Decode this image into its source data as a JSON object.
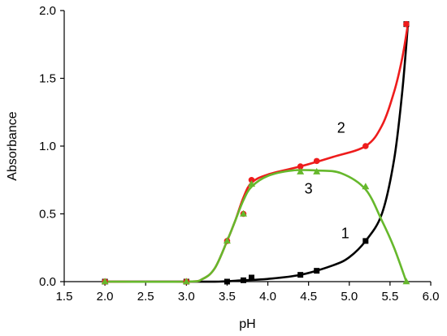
{
  "chart_data": {
    "type": "line",
    "xlabel": "pH",
    "ylabel": "Absorbance",
    "xlim": [
      1.5,
      6.0
    ],
    "ylim": [
      0.0,
      2.0
    ],
    "xticks": [
      "1.5",
      "2.0",
      "2.5",
      "3.0",
      "3.5",
      "4.0",
      "4.5",
      "5.0",
      "5.5",
      "6.0"
    ],
    "yticks": [
      "0.0",
      "0.5",
      "1.0",
      "1.5",
      "2.0"
    ],
    "grid": false,
    "series": [
      {
        "name": "1",
        "color": "#000000",
        "marker": "square",
        "x": [
          2.0,
          3.0,
          3.5,
          3.7,
          3.8,
          4.4,
          4.6,
          5.2,
          5.7
        ],
        "y": [
          0.0,
          0.0,
          0.0,
          0.01,
          0.03,
          0.05,
          0.08,
          0.3,
          1.9
        ],
        "curve_x": [
          2.0,
          3.0,
          3.4,
          3.7,
          4.0,
          4.4,
          4.8,
          5.0,
          5.2,
          5.4,
          5.55,
          5.65,
          5.72
        ],
        "curve_y": [
          0.0,
          0.0,
          0.0,
          0.01,
          0.02,
          0.05,
          0.12,
          0.18,
          0.3,
          0.5,
          0.9,
          1.4,
          1.9
        ]
      },
      {
        "name": "2",
        "color": "#ee1c1c",
        "marker": "circle",
        "x": [
          2.0,
          3.0,
          3.5,
          3.7,
          3.8,
          4.4,
          4.6,
          5.2,
          5.7
        ],
        "y": [
          0.0,
          0.0,
          0.3,
          0.5,
          0.75,
          0.85,
          0.89,
          1.0,
          1.9
        ],
        "curve_x": [
          2.0,
          3.0,
          3.2,
          3.35,
          3.5,
          3.6,
          3.7,
          3.8,
          4.0,
          4.4,
          4.8,
          5.2,
          5.4,
          5.55,
          5.65,
          5.72
        ],
        "curve_y": [
          0.0,
          0.0,
          0.02,
          0.1,
          0.3,
          0.45,
          0.62,
          0.73,
          0.79,
          0.85,
          0.92,
          1.0,
          1.15,
          1.4,
          1.65,
          1.9
        ]
      },
      {
        "name": "3",
        "color": "#66b82c",
        "marker": "triangle",
        "x": [
          2.0,
          3.0,
          3.5,
          3.7,
          3.8,
          4.4,
          4.6,
          5.2,
          5.7
        ],
        "y": [
          0.0,
          0.0,
          0.3,
          0.5,
          0.72,
          0.81,
          0.81,
          0.7,
          0.0
        ],
        "curve_x": [
          2.0,
          3.0,
          3.2,
          3.35,
          3.5,
          3.6,
          3.7,
          3.8,
          4.0,
          4.3,
          4.6,
          4.9,
          5.2,
          5.4,
          5.55,
          5.7
        ],
        "curve_y": [
          0.0,
          0.0,
          0.02,
          0.1,
          0.3,
          0.45,
          0.6,
          0.7,
          0.78,
          0.82,
          0.82,
          0.8,
          0.68,
          0.45,
          0.25,
          0.0
        ]
      }
    ],
    "annotations": [
      {
        "text": "1",
        "x": 4.95,
        "y": 0.32
      },
      {
        "text": "2",
        "x": 4.9,
        "y": 1.1
      },
      {
        "text": "3",
        "x": 4.5,
        "y": 0.65
      }
    ]
  }
}
